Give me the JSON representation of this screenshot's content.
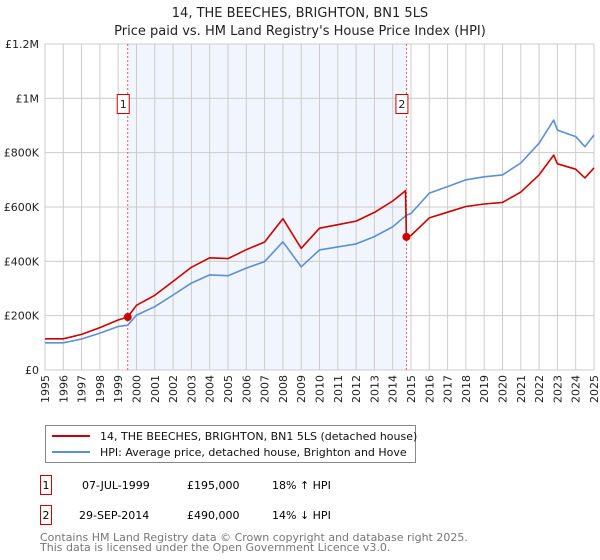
{
  "chart_data": {
    "type": "line",
    "title": "14, THE BEECHES, BRIGHTON, BN1 5LS",
    "subtitle": "Price paid vs. HM Land Registry's House Price Index (HPI)",
    "xlim": [
      1995,
      2025
    ],
    "ylim": [
      0,
      1200000
    ],
    "grid": true,
    "y_ticks": [
      {
        "value": 0,
        "label": "£0"
      },
      {
        "value": 200000,
        "label": "£200K"
      },
      {
        "value": 400000,
        "label": "£400K"
      },
      {
        "value": 600000,
        "label": "£600K"
      },
      {
        "value": 800000,
        "label": "£800K"
      },
      {
        "value": 1000000,
        "label": "£1M"
      },
      {
        "value": 1200000,
        "label": "£1.2M"
      }
    ],
    "x_ticks": [
      "1995",
      "1996",
      "1997",
      "1998",
      "1999",
      "2000",
      "2001",
      "2002",
      "2003",
      "2004",
      "2005",
      "2006",
      "2007",
      "2008",
      "2009",
      "2010",
      "2011",
      "2012",
      "2013",
      "2014",
      "2015",
      "2016",
      "2017",
      "2018",
      "2019",
      "2020",
      "2021",
      "2022",
      "2023",
      "2024",
      "2025"
    ],
    "series": [
      {
        "name": "14, THE BEECHES, BRIGHTON, BN1 5LS (detached house)",
        "color": "#cc0000",
        "x": [
          1995,
          1996,
          1997,
          1998,
          1999,
          1999.52,
          2000,
          2001,
          2002,
          2003,
          2004,
          2005,
          2006,
          2007,
          2008,
          2009,
          2010,
          2011,
          2012,
          2013,
          2014,
          2014.7,
          2014.75,
          2015,
          2016,
          2017,
          2018,
          2019,
          2020,
          2021,
          2022,
          2022.8,
          2023,
          2024,
          2024.5,
          2025
        ],
        "y": [
          115000,
          115000,
          131000,
          156000,
          184000,
          195000,
          238000,
          275000,
          326000,
          378000,
          413000,
          410000,
          443000,
          471000,
          557000,
          448000,
          522000,
          535000,
          548000,
          580000,
          622000,
          660000,
          490000,
          495000,
          560000,
          581000,
          602000,
          611000,
          617000,
          655000,
          718000,
          791000,
          759000,
          739000,
          707000,
          744000
        ]
      },
      {
        "name": "HPI: Average price, detached house, Brighton and Hove",
        "color": "#5b8fd4",
        "x": [
          1995,
          1996,
          1997,
          1998,
          1999,
          1999.52,
          2000,
          2001,
          2002,
          2003,
          2004,
          2005,
          2006,
          2007,
          2008,
          2009,
          2010,
          2011,
          2012,
          2013,
          2014,
          2014.75,
          2015,
          2016,
          2017,
          2018,
          2019,
          2020,
          2021,
          2022,
          2022.8,
          2023,
          2024,
          2024.5,
          2025
        ],
        "y": [
          100000,
          100000,
          114000,
          136000,
          160000,
          165000,
          202000,
          233000,
          276000,
          320000,
          350000,
          347000,
          375000,
          399000,
          472000,
          380000,
          442000,
          453000,
          464000,
          491000,
          527000,
          570000,
          576000,
          651000,
          675000,
          700000,
          711000,
          718000,
          762000,
          835000,
          920000,
          883000,
          859000,
          822000,
          865000
        ]
      }
    ],
    "sales": [
      {
        "id": "1",
        "x": 1999.52,
        "y": 195000,
        "date": "07-JUL-1999",
        "price": "£195,000",
        "hpi": "18% ↑ HPI"
      },
      {
        "id": "2",
        "x": 2014.75,
        "y": 490000,
        "date": "29-SEP-2014",
        "price": "£490,000",
        "hpi": "14% ↓ HPI"
      }
    ],
    "legend_placement": "bottom"
  },
  "footer": {
    "line1": "Contains HM Land Registry data © Crown copyright and database right 2025.",
    "line2": "This data is licensed under the Open Government Licence v3.0."
  }
}
